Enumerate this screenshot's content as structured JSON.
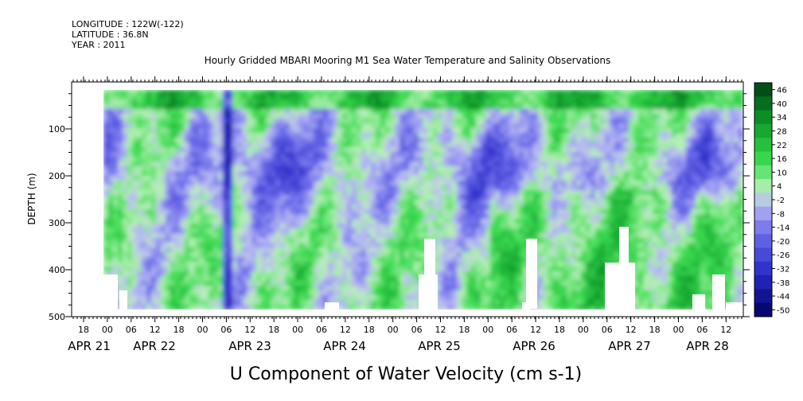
{
  "header": {
    "longitude": "LONGITUDE : 122W(-122)",
    "latitude": "LATITUDE : 36.8N",
    "year": "YEAR : 2011"
  },
  "chart_data": {
    "type": "heatmap",
    "title": "Hourly Gridded MBARI Mooring M1 Sea Water Temperature and Salinity Observations",
    "xlabel": "U Component of Water Velocity (cm s-1)",
    "ylabel": "DEPTH (m)",
    "ylim": [
      500,
      0
    ],
    "y_ticks": [
      100,
      200,
      300,
      400,
      500
    ],
    "x_hour_ticks": [
      "18",
      "00",
      "06",
      "12",
      "18",
      "00",
      "06",
      "12",
      "18",
      "00",
      "06",
      "12",
      "18",
      "00",
      "06",
      "12",
      "18",
      "00",
      "06",
      "12",
      "18",
      "00",
      "06",
      "12",
      "18",
      "00",
      "06",
      "12",
      "18",
      "00",
      "06",
      "12"
    ],
    "x_date_labels": [
      "APR 21",
      "APR 22",
      "APR 23",
      "APR 24",
      "APR 25",
      "APR 26",
      "APR 27",
      "APR 28"
    ],
    "colorbar_labels": [
      "46",
      "40",
      "34",
      "28",
      "22",
      "16",
      "10",
      "4",
      "-2",
      "-8",
      "-14",
      "-20",
      "-26",
      "-32",
      "-38",
      "-44",
      "-50"
    ],
    "colorbar_range": [
      -50,
      50
    ],
    "colors": {
      "strong_negative": "#000060",
      "negative": "#5a5ae6",
      "weak_negative": "#b4b4f5",
      "weak_positive": "#b4f0b4",
      "positive": "#32dc50",
      "strong_positive": "#003c14"
    }
  }
}
